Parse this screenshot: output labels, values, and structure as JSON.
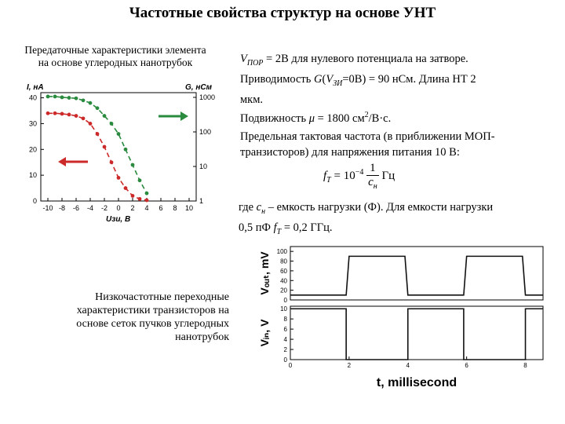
{
  "title": "Частотные свойства структур на основе УНТ",
  "caption_transfer_line1": "Передаточные характеристики элемента",
  "caption_transfer_line2": "на основе углеродных нанотрубок",
  "caption_lowfreq_line1": "Низкочастотные переходные",
  "caption_lowfreq_line2": "характеристики транзисторов на",
  "caption_lowfreq_line3": "основе сеток пучков углеродных",
  "caption_lowfreq_line4": "нанотрубок",
  "para1": {
    "v_pre": "V",
    "v_sub": "ПОР",
    "v_rest": " = 2В для нулевого потенциала на затворе.",
    "cond_pre": "Приводимость ",
    "cond_g": "G",
    "cond_open": "(",
    "cond_v": "V",
    "cond_sub": "ЗИ",
    "cond_rest": "=0В) = 90 нСм. Длина НТ 2",
    "line3": "мкм.",
    "mob_pre": "Подвижность ",
    "mob_mu": "μ",
    "mob_val": " = 1800 см",
    "mob_sup": "2",
    "mob_unit": "/В·с."
  },
  "para2": {
    "line1": "Предельная тактовая частота (в приближении МОП-",
    "line2": "транзисторов) для напряжения питания 10 В:"
  },
  "formula": {
    "f": "f",
    "f_sub": "T",
    "eq": " = 10",
    "exp": "−4",
    "num": "1",
    "den_c": "c",
    "den_sub": "н",
    "unit": " Гц"
  },
  "para3": {
    "pre": "где ",
    "c": "c",
    "c_sub": "н",
    "rest": " – емкость нагрузки (Ф). Для емкости нагрузки",
    "line2_pre": "0,5 пФ ",
    "f": "f",
    "f_sub": "T",
    "line2_rest": " = 0,2 ГГц."
  },
  "chart_data": [
    {
      "type": "scatter",
      "title": "",
      "xlabel": "Uзи, В",
      "ylabel_left": "I, нА",
      "ylabel_right": "G, нСм",
      "x_ticks": [
        "-10",
        "-8",
        "-6",
        "-4",
        "-2",
        "0",
        "2",
        "4",
        "6",
        "8",
        "10"
      ],
      "y_left_ticks": [
        "0",
        "10",
        "20",
        "30",
        "40"
      ],
      "y_right_ticks": [
        "1",
        "10",
        "100",
        "1000"
      ],
      "xlim": [
        -11,
        11
      ],
      "ylim": [
        0,
        42
      ],
      "y_right_scale": "log",
      "series": [
        {
          "color": "#2a8a3e",
          "style": "dashed-with-points",
          "x": [
            -10,
            -9,
            -8,
            -7,
            -6,
            -5,
            -4,
            -3,
            -2,
            -1,
            0,
            1,
            2,
            3,
            4
          ],
          "y": [
            40.5,
            40.5,
            40.2,
            40,
            39.8,
            39,
            38,
            36,
            33,
            30,
            26,
            20,
            14,
            8,
            3
          ]
        },
        {
          "color": "#cc2a2a",
          "style": "dashed-with-points",
          "x": [
            -10,
            -9,
            -8,
            -7,
            -6,
            -5,
            -4,
            -3,
            -2,
            -1,
            0,
            1,
            2,
            3,
            4
          ],
          "y": [
            34,
            34,
            33.8,
            33.5,
            33,
            32,
            30,
            26,
            21,
            15,
            9,
            5,
            2,
            0.8,
            0.3
          ]
        }
      ],
      "annotations": [
        "arrow-right-green",
        "arrow-left-red"
      ]
    },
    {
      "type": "line",
      "title": "",
      "panels": [
        {
          "ylabel": "Vₒᵤₜ, mV",
          "y_ticks": [
            "0",
            "20",
            "40",
            "60",
            "80",
            "100"
          ],
          "ylim": [
            0,
            110
          ],
          "x": [
            0,
            1.9,
            2.0,
            3.9,
            4.0,
            5.9,
            6.0,
            7.9,
            8.0,
            8.6
          ],
          "y": [
            10,
            10,
            90,
            90,
            10,
            10,
            90,
            90,
            10,
            10
          ]
        },
        {
          "ylabel": "Vᵢₙ, V",
          "y_ticks": [
            "0",
            "2",
            "4",
            "6",
            "8",
            "10"
          ],
          "ylim": [
            0,
            10.5
          ],
          "x": [
            0,
            1.9,
            1.9,
            4.0,
            4.0,
            5.9,
            5.9,
            8.0,
            8.0,
            8.6
          ],
          "y": [
            10,
            10,
            0,
            0,
            10,
            10,
            0,
            0,
            10,
            10
          ]
        }
      ],
      "x_ticks": [
        "0",
        "2",
        "4",
        "6",
        "8"
      ],
      "xlim": [
        0,
        8.6
      ],
      "xlabel": "t, millisecond"
    }
  ]
}
